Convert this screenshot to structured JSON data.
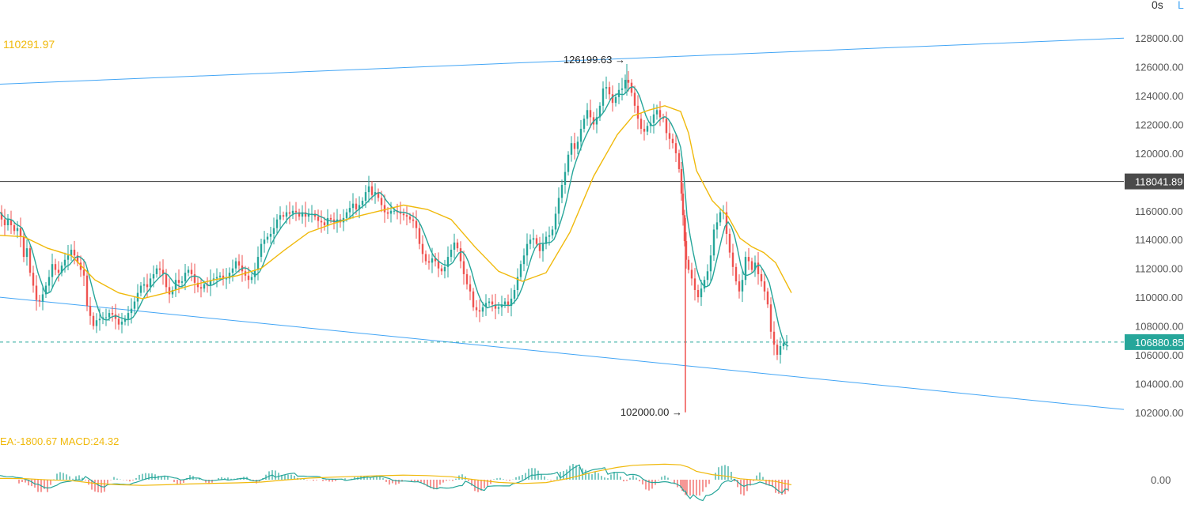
{
  "toolbar": {
    "timeframe_label": "0s",
    "extra_label": "L"
  },
  "indicators": {
    "ma_value_label": "110291.97",
    "macd_label": "EA:-1800.67  MACD:24.32"
  },
  "colors": {
    "up": "#26a69a",
    "down": "#ef5350",
    "channel": "#42a5f5",
    "ma_fast": "#26a69a",
    "ma_slow": "#f0b90b",
    "hline": "#333333",
    "current_price": "#26a69a",
    "axis_text": "#555555"
  },
  "chart_data": {
    "type": "candlestick",
    "y_range": [
      101000,
      129000
    ],
    "y_ticks": [
      "128000.00",
      "126000.00",
      "124000.00",
      "122000.00",
      "120000.00",
      "118041.89",
      "116000.00",
      "114000.00",
      "112000.00",
      "110000.00",
      "108000.00",
      "106880.85",
      "106000.00",
      "104000.00",
      "102000.00"
    ],
    "horizontal_line": {
      "value": 118041.89,
      "label": "118041.89"
    },
    "current_price": {
      "value": 106880.85,
      "label": "106880.85"
    },
    "annotations": [
      {
        "label": "126199.63",
        "value": 126199.63
      },
      {
        "label": "102000.00",
        "value": 102000.0
      }
    ],
    "macd_zero_label": "0.00",
    "close_path": [
      [
        0,
        115900
      ],
      [
        4,
        115400
      ],
      [
        8,
        115000
      ],
      [
        12,
        115400
      ],
      [
        16,
        115000
      ],
      [
        20,
        114600
      ],
      [
        24,
        114800
      ],
      [
        28,
        114200
      ],
      [
        32,
        112800
      ],
      [
        36,
        113400
      ],
      [
        40,
        111700
      ],
      [
        44,
        110800
      ],
      [
        48,
        109800
      ],
      [
        52,
        109700
      ],
      [
        56,
        110200
      ],
      [
        60,
        110800
      ],
      [
        64,
        111400
      ],
      [
        68,
        112300
      ],
      [
        72,
        111900
      ],
      [
        76,
        111700
      ],
      [
        80,
        112200
      ],
      [
        84,
        112600
      ],
      [
        88,
        112900
      ],
      [
        92,
        113300
      ],
      [
        96,
        112900
      ],
      [
        100,
        112400
      ],
      [
        104,
        111900
      ],
      [
        108,
        111500
      ],
      [
        112,
        109400
      ],
      [
        116,
        108700
      ],
      [
        120,
        108000
      ],
      [
        124,
        108400
      ],
      [
        128,
        108500
      ],
      [
        132,
        108600
      ],
      [
        136,
        108600
      ],
      [
        140,
        108900
      ],
      [
        144,
        108800
      ],
      [
        148,
        108500
      ],
      [
        152,
        108100
      ],
      [
        156,
        108300
      ],
      [
        160,
        108500
      ],
      [
        164,
        108900
      ],
      [
        168,
        109200
      ],
      [
        172,
        109700
      ],
      [
        176,
        110300
      ],
      [
        180,
        110800
      ],
      [
        184,
        110900
      ],
      [
        188,
        110700
      ],
      [
        192,
        111300
      ],
      [
        196,
        111600
      ],
      [
        200,
        112000
      ],
      [
        204,
        111900
      ],
      [
        208,
        111600
      ],
      [
        212,
        110700
      ],
      [
        216,
        110200
      ],
      [
        220,
        110500
      ],
      [
        224,
        111200
      ],
      [
        228,
        111000
      ],
      [
        232,
        111100
      ],
      [
        236,
        111700
      ],
      [
        240,
        111900
      ],
      [
        244,
        111600
      ],
      [
        248,
        111000
      ],
      [
        252,
        110700
      ],
      [
        256,
        110600
      ],
      [
        260,
        110900
      ],
      [
        264,
        110800
      ],
      [
        268,
        111200
      ],
      [
        272,
        111300
      ],
      [
        276,
        111400
      ],
      [
        280,
        111500
      ],
      [
        284,
        111300
      ],
      [
        288,
        111300
      ],
      [
        292,
        111700
      ],
      [
        296,
        112000
      ],
      [
        300,
        112500
      ],
      [
        304,
        112200
      ],
      [
        308,
        111800
      ],
      [
        312,
        111500
      ],
      [
        316,
        111200
      ],
      [
        320,
        111400
      ],
      [
        324,
        111900
      ],
      [
        328,
        112800
      ],
      [
        332,
        113700
      ],
      [
        336,
        114000
      ],
      [
        340,
        114200
      ],
      [
        344,
        114400
      ],
      [
        348,
        114800
      ],
      [
        352,
        115400
      ],
      [
        356,
        115700
      ],
      [
        360,
        115600
      ],
      [
        364,
        115900
      ],
      [
        368,
        115800
      ],
      [
        372,
        116000
      ],
      [
        376,
        115900
      ],
      [
        380,
        115600
      ],
      [
        384,
        115900
      ],
      [
        388,
        115600
      ],
      [
        392,
        115800
      ],
      [
        396,
        115800
      ],
      [
        400,
        115600
      ],
      [
        404,
        115300
      ],
      [
        408,
        115200
      ],
      [
        412,
        115000
      ],
      [
        416,
        115500
      ],
      [
        420,
        115400
      ],
      [
        424,
        115200
      ],
      [
        428,
        115400
      ],
      [
        432,
        115200
      ],
      [
        436,
        115500
      ],
      [
        440,
        115900
      ],
      [
        444,
        116200
      ],
      [
        448,
        116500
      ],
      [
        452,
        116100
      ],
      [
        456,
        116400
      ],
      [
        460,
        116700
      ],
      [
        464,
        117300
      ],
      [
        468,
        117700
      ],
      [
        472,
        117100
      ],
      [
        476,
        117300
      ],
      [
        480,
        116900
      ],
      [
        484,
        116400
      ],
      [
        488,
        115900
      ],
      [
        492,
        115800
      ],
      [
        496,
        116000
      ],
      [
        500,
        116000
      ],
      [
        504,
        115900
      ],
      [
        508,
        115800
      ],
      [
        512,
        115700
      ],
      [
        516,
        115600
      ],
      [
        520,
        115400
      ],
      [
        524,
        115300
      ],
      [
        528,
        114800
      ],
      [
        532,
        113700
      ],
      [
        536,
        113000
      ],
      [
        540,
        112500
      ],
      [
        544,
        112400
      ],
      [
        548,
        112700
      ],
      [
        552,
        112500
      ],
      [
        556,
        112000
      ],
      [
        560,
        111800
      ],
      [
        564,
        112100
      ],
      [
        568,
        112800
      ],
      [
        572,
        113300
      ],
      [
        576,
        113800
      ],
      [
        580,
        113400
      ],
      [
        584,
        112500
      ],
      [
        588,
        111600
      ],
      [
        592,
        110900
      ],
      [
        596,
        110400
      ],
      [
        600,
        109300
      ],
      [
        604,
        109100
      ],
      [
        608,
        109000
      ],
      [
        612,
        109300
      ],
      [
        616,
        109600
      ],
      [
        620,
        109700
      ],
      [
        624,
        109500
      ],
      [
        628,
        109200
      ],
      [
        632,
        109300
      ],
      [
        636,
        109500
      ],
      [
        640,
        109700
      ],
      [
        644,
        109400
      ],
      [
        648,
        109900
      ],
      [
        652,
        110500
      ],
      [
        656,
        111400
      ],
      [
        660,
        112300
      ],
      [
        664,
        112900
      ],
      [
        668,
        113700
      ],
      [
        672,
        114000
      ],
      [
        676,
        114100
      ],
      [
        680,
        113700
      ],
      [
        684,
        113200
      ],
      [
        688,
        113700
      ],
      [
        692,
        114200
      ],
      [
        696,
        114300
      ],
      [
        700,
        114700
      ],
      [
        704,
        115800
      ],
      [
        708,
        116900
      ],
      [
        712,
        117800
      ],
      [
        716,
        118700
      ],
      [
        720,
        119900
      ],
      [
        724,
        120700
      ],
      [
        728,
        120300
      ],
      [
        732,
        120800
      ],
      [
        736,
        121700
      ],
      [
        740,
        122400
      ],
      [
        744,
        123000
      ],
      [
        748,
        122500
      ],
      [
        752,
        122000
      ],
      [
        756,
        122500
      ],
      [
        760,
        123300
      ],
      [
        764,
        124500
      ],
      [
        768,
        124600
      ],
      [
        772,
        124100
      ],
      [
        776,
        123500
      ],
      [
        780,
        123900
      ],
      [
        784,
        124400
      ],
      [
        788,
        124500
      ],
      [
        792,
        125100
      ],
      [
        796,
        124900
      ],
      [
        800,
        124200
      ],
      [
        804,
        123300
      ],
      [
        808,
        122400
      ],
      [
        812,
        121700
      ],
      [
        816,
        121500
      ],
      [
        820,
        121900
      ],
      [
        824,
        122100
      ],
      [
        828,
        122700
      ],
      [
        832,
        123000
      ],
      [
        836,
        122500
      ],
      [
        840,
        122400
      ],
      [
        844,
        121400
      ],
      [
        848,
        121000
      ],
      [
        852,
        120700
      ],
      [
        856,
        120000
      ],
      [
        860,
        118900
      ],
      [
        862,
        117200
      ],
      [
        864,
        115700
      ],
      [
        866,
        113900
      ],
      [
        868,
        112600
      ],
      [
        872,
        111900
      ],
      [
        876,
        111300
      ],
      [
        880,
        110500
      ],
      [
        884,
        110000
      ],
      [
        888,
        110600
      ],
      [
        892,
        111200
      ],
      [
        896,
        111800
      ],
      [
        900,
        112900
      ],
      [
        904,
        114700
      ],
      [
        908,
        115200
      ],
      [
        912,
        115900
      ],
      [
        916,
        115900
      ],
      [
        920,
        114400
      ],
      [
        924,
        113100
      ],
      [
        928,
        112100
      ],
      [
        932,
        111100
      ],
      [
        936,
        110400
      ],
      [
        940,
        111200
      ],
      [
        944,
        112800
      ],
      [
        948,
        112500
      ],
      [
        952,
        111900
      ],
      [
        956,
        112400
      ],
      [
        960,
        111600
      ],
      [
        964,
        111100
      ],
      [
        968,
        110400
      ],
      [
        972,
        109500
      ],
      [
        976,
        107600
      ],
      [
        980,
        106700
      ],
      [
        984,
        106000
      ],
      [
        988,
        106600
      ],
      [
        992,
        106800
      ],
      [
        996,
        106880
      ]
    ],
    "ma_slow": [
      [
        0,
        114300
      ],
      [
        30,
        114200
      ],
      [
        60,
        113400
      ],
      [
        90,
        112900
      ],
      [
        120,
        111200
      ],
      [
        150,
        110300
      ],
      [
        180,
        109900
      ],
      [
        210,
        110300
      ],
      [
        240,
        110800
      ],
      [
        270,
        111200
      ],
      [
        300,
        111500
      ],
      [
        330,
        112000
      ],
      [
        360,
        113300
      ],
      [
        390,
        114500
      ],
      [
        420,
        115100
      ],
      [
        450,
        115600
      ],
      [
        480,
        116000
      ],
      [
        510,
        116400
      ],
      [
        540,
        116100
      ],
      [
        570,
        115400
      ],
      [
        600,
        113500
      ],
      [
        630,
        111800
      ],
      [
        660,
        111100
      ],
      [
        690,
        111700
      ],
      [
        720,
        114500
      ],
      [
        750,
        118400
      ],
      [
        780,
        121300
      ],
      [
        800,
        122600
      ],
      [
        820,
        123000
      ],
      [
        840,
        123300
      ],
      [
        860,
        122900
      ],
      [
        870,
        121400
      ],
      [
        880,
        118800
      ],
      [
        900,
        116700
      ],
      [
        920,
        115600
      ],
      [
        935,
        114100
      ],
      [
        950,
        113500
      ],
      [
        965,
        113100
      ],
      [
        980,
        112400
      ],
      [
        1000,
        110300
      ]
    ],
    "channel_upper": [
      [
        0,
        124800
      ],
      [
        1420,
        128000
      ]
    ],
    "channel_lower": [
      [
        0,
        110000
      ],
      [
        1420,
        102200
      ]
    ]
  }
}
